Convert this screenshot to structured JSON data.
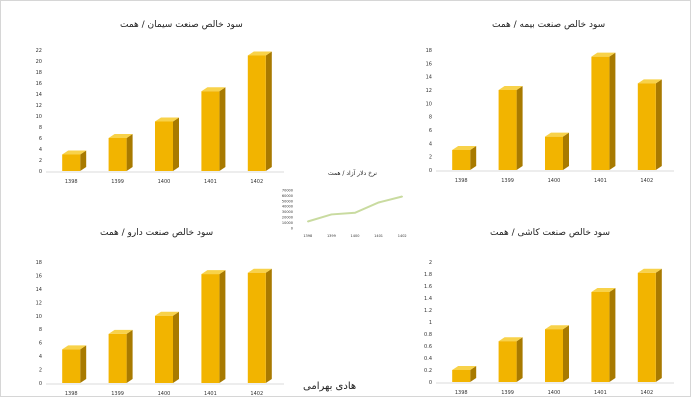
{
  "colors": {
    "bar_face": "#f2b400",
    "bar_side": "#a87a00",
    "bar_top": "#f8d24a",
    "line": "#c9dba0",
    "grid": "#e6e6e6",
    "axis_text": "#333333"
  },
  "author": "هادی بهرامی",
  "chart_data": [
    {
      "id": "cement",
      "type": "bar",
      "title": "سود خالص صنعت سیمان / همت",
      "categories": [
        "1398",
        "1399",
        "1400",
        "1401",
        "1402"
      ],
      "values": [
        3,
        6,
        9,
        14.5,
        21
      ],
      "ylim": [
        0,
        22
      ],
      "yticks": [
        "0",
        "2",
        "4",
        "6",
        "8",
        "10",
        "12",
        "14",
        "16",
        "18",
        "20",
        "22"
      ],
      "xlabel": "",
      "ylabel": "",
      "grid": false,
      "legend": "none"
    },
    {
      "id": "insurance",
      "type": "bar",
      "title": "سود خالص صنعت بیمه / همت",
      "categories": [
        "1398",
        "1399",
        "1400",
        "1401",
        "1402"
      ],
      "values": [
        3,
        12,
        5,
        17,
        13
      ],
      "ylim": [
        0,
        18
      ],
      "yticks": [
        "0",
        "2",
        "4",
        "6",
        "8",
        "10",
        "12",
        "14",
        "16",
        "18"
      ],
      "xlabel": "",
      "ylabel": "",
      "grid": false,
      "legend": "none"
    },
    {
      "id": "dollar",
      "type": "line",
      "title": "نرخ دلار آزاد / همت",
      "categories": [
        "1398",
        "1399",
        "1400",
        "1401",
        "1402"
      ],
      "values": [
        12000,
        25000,
        28000,
        47000,
        58000
      ],
      "ylim": [
        0,
        70000
      ],
      "yticks": [
        "0",
        "10000",
        "20000",
        "30000",
        "40000",
        "50000",
        "60000",
        "70000"
      ],
      "xlabel": "",
      "ylabel": "",
      "grid": false,
      "legend": "none"
    },
    {
      "id": "pharma",
      "type": "bar",
      "title": "سود خالص صنعت دارو / همت",
      "categories": [
        "1398",
        "1399",
        "1400",
        "1401",
        "1402"
      ],
      "values": [
        5,
        7.3,
        10,
        16.2,
        16.4
      ],
      "ylim": [
        0,
        18
      ],
      "yticks": [
        "0",
        "2",
        "4",
        "6",
        "8",
        "10",
        "12",
        "14",
        "16",
        "18"
      ],
      "xlabel": "",
      "ylabel": "",
      "grid": false,
      "legend": "none"
    },
    {
      "id": "tile",
      "type": "bar",
      "title": "سود خالص صنعت کاشی / همت",
      "categories": [
        "1398",
        "1399",
        "1400",
        "1401",
        "1402"
      ],
      "values": [
        0.2,
        0.68,
        0.88,
        1.5,
        1.82
      ],
      "ylim": [
        0,
        2
      ],
      "yticks": [
        "0",
        "0.2",
        "0.4",
        "0.6",
        "0.8",
        "1",
        "1.2",
        "1.4",
        "1.6",
        "1.8",
        "2"
      ],
      "xlabel": "",
      "ylabel": "",
      "grid": false,
      "legend": "none"
    }
  ]
}
